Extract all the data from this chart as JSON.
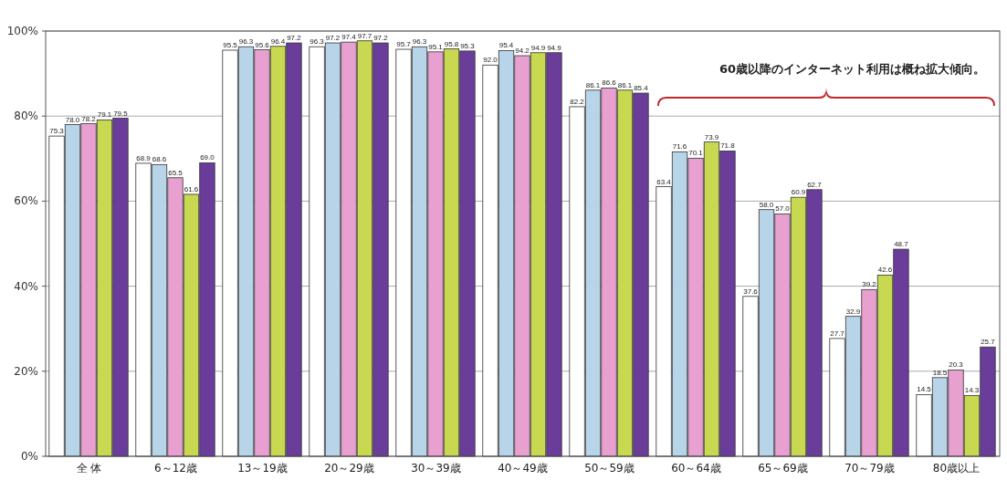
{
  "chart_data": {
    "type": "bar",
    "categories": [
      "全 体",
      "6～12歳",
      "13～19歳",
      "20～29歳",
      "30～39歳",
      "40～49歳",
      "50～59歳",
      "60～64歳",
      "65～69歳",
      "70～79歳",
      "80歳以上"
    ],
    "series": [
      {
        "color": "#ffffff",
        "values": [
          75.3,
          68.9,
          95.5,
          96.3,
          95.7,
          92.0,
          82.2,
          63.4,
          37.6,
          27.7,
          14.5
        ],
        "value_labels": [
          "75.3",
          "68.9",
          "95.5",
          "96.3",
          "95.7",
          "92.0",
          "82.2",
          "63.4",
          "37.6",
          "27.7",
          "14.5"
        ]
      },
      {
        "color": "#b8d4e8",
        "values": [
          78.0,
          68.6,
          96.3,
          97.2,
          96.3,
          95.4,
          86.1,
          71.6,
          58.0,
          32.9,
          18.5
        ],
        "value_labels": [
          "78.0",
          "68.6",
          "96.3",
          "97.2",
          "96.3",
          "95.4",
          "86.1",
          "71.6",
          "58.0",
          "32.9",
          "18.5"
        ]
      },
      {
        "color": "#e8a0d0",
        "values": [
          78.2,
          65.5,
          95.6,
          97.4,
          95.1,
          94.2,
          86.6,
          70.1,
          57.0,
          39.2,
          20.3
        ],
        "value_labels": [
          "78.2",
          "65.5",
          "95.6",
          "97.4",
          "95.1",
          "94.2",
          "86.6",
          "70.1",
          "57.0",
          "39.2",
          "20.3"
        ]
      },
      {
        "color": "#c8d850",
        "values": [
          79.1,
          61.6,
          96.4,
          97.7,
          95.8,
          94.9,
          86.1,
          73.9,
          60.9,
          42.6,
          14.3
        ],
        "value_labels": [
          "79.1",
          "61.6",
          "96.4",
          "97.7",
          "95.8",
          "94.9",
          "86.1",
          "73.9",
          "60.9",
          "42.6",
          "14.3"
        ]
      },
      {
        "color": "#6a3d9a",
        "values": [
          79.5,
          69.0,
          97.2,
          97.2,
          95.3,
          94.9,
          85.4,
          71.8,
          62.7,
          48.7,
          25.7
        ],
        "value_labels": [
          "79.5",
          "69.0",
          "97.2",
          "97.2",
          "95.3",
          "94.9",
          "85.4",
          "71.8",
          "62.7",
          "48.7",
          "25.7"
        ]
      }
    ],
    "ylim": [
      0,
      100
    ],
    "yticks": [
      {
        "value": 0,
        "label": "0%"
      },
      {
        "value": 20,
        "label": "20%"
      },
      {
        "value": 40,
        "label": "40%"
      },
      {
        "value": 60,
        "label": "60%"
      },
      {
        "value": 80,
        "label": "80%"
      },
      {
        "value": 100,
        "label": "100%"
      }
    ],
    "grid": "y",
    "annotations": [
      "60歳以降のインターネット利用は概ね拡大傾向。"
    ]
  }
}
